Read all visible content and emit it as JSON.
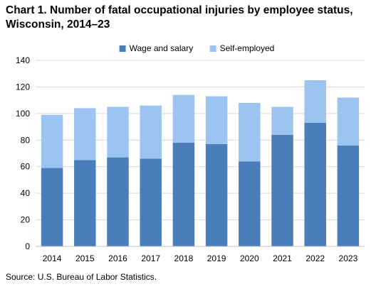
{
  "title": "Chart 1. Number of fatal occupational injuries by employee status, Wisconsin, 2014–23",
  "source": "Source: U.S. Bureau of Labor Statistics.",
  "chart_data": {
    "type": "bar",
    "stacked": true,
    "categories": [
      "2014",
      "2015",
      "2016",
      "2017",
      "2018",
      "2019",
      "2020",
      "2021",
      "2022",
      "2023"
    ],
    "series": [
      {
        "name": "Wage and salary",
        "color": "#4a7ebb",
        "values": [
          59,
          65,
          67,
          66,
          78,
          77,
          64,
          84,
          93,
          76
        ]
      },
      {
        "name": "Self-employed",
        "color": "#9dc3f0",
        "values": [
          40,
          39,
          38,
          40,
          36,
          36,
          44,
          21,
          32,
          36
        ]
      }
    ],
    "yticks": [
      0,
      20,
      40,
      60,
      80,
      100,
      120,
      140
    ],
    "ylim": [
      0,
      140
    ],
    "grid": true,
    "legend_position": "top-center"
  }
}
